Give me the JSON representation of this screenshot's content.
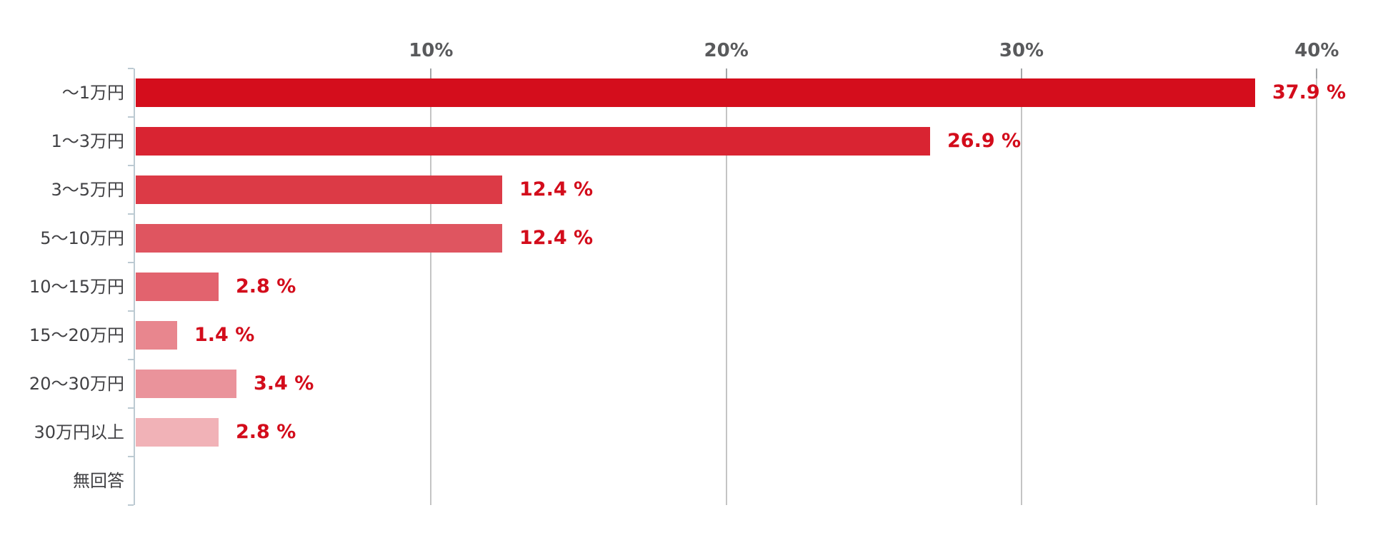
{
  "chart_data": {
    "type": "bar",
    "orientation": "horizontal",
    "title": "",
    "xlabel": "",
    "ylabel": "",
    "categories": [
      "〜1万円",
      "1〜3万円",
      "3〜5万円",
      "5〜10万円",
      "10〜15万円",
      "15〜20万円",
      "20〜30万円",
      "30万円以上",
      "無回答"
    ],
    "values": [
      37.9,
      26.9,
      12.4,
      12.4,
      2.8,
      1.4,
      3.4,
      2.8,
      null
    ],
    "value_labels": [
      "37.9 %",
      "26.9 %",
      "12.4 %",
      "12.4 %",
      "2.8 %",
      "1.4 %",
      "3.4 %",
      "2.8 %",
      ""
    ],
    "bar_colors": [
      "#d40d1c",
      "#d92432",
      "#dc3a46",
      "#df5560",
      "#e2636e",
      "#e8868e",
      "#ea939b",
      "#f1b2b7",
      null
    ],
    "x_axis": {
      "position": "top",
      "min": 0,
      "max": 40,
      "tick_values": [
        10,
        20,
        30,
        40
      ],
      "tick_labels": [
        "10%",
        "20%",
        "30%",
        "40%"
      ],
      "grid": true
    },
    "legend": null,
    "colors": {
      "value_label": "#d30c1b",
      "category_label": "#414144",
      "axis_tick_label": "#595a5c",
      "gridline": "#c4c4c4",
      "gridline_stub": "#a3a6a8",
      "axis_line": "#bccad2",
      "background": "#ffffff"
    }
  }
}
